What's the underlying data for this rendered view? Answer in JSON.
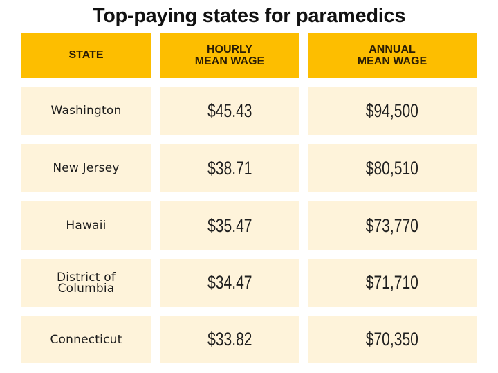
{
  "title": "Top-paying states for paramedics",
  "colors": {
    "header_bg": "#FDBE00",
    "cell_bg": "#FEF3DA",
    "text": "#1c1c1c"
  },
  "table": {
    "headers": [
      "STATE",
      "HOURLY\nMEAN WAGE",
      "ANNUAL\nMEAN WAGE"
    ],
    "rows": [
      {
        "state": "Washington",
        "hourly": "$45.43",
        "annual": "$94,500"
      },
      {
        "state": "New Jersey",
        "hourly": "$38.71",
        "annual": "$80,510"
      },
      {
        "state": "Hawaii",
        "hourly": "$35.47",
        "annual": "$73,770"
      },
      {
        "state": "District of\nColumbia",
        "hourly": "$34.47",
        "annual": "$71,710"
      },
      {
        "state": "Connecticut",
        "hourly": "$33.82",
        "annual": "$70,350"
      }
    ]
  },
  "chart_data": {
    "type": "table",
    "title": "Top-paying states for paramedics",
    "columns": [
      "State",
      "Hourly Mean Wage",
      "Annual Mean Wage"
    ],
    "rows": [
      [
        "Washington",
        45.43,
        94500
      ],
      [
        "New Jersey",
        38.71,
        80510
      ],
      [
        "Hawaii",
        35.47,
        73770
      ],
      [
        "District of Columbia",
        34.47,
        71710
      ],
      [
        "Connecticut",
        33.82,
        70350
      ]
    ]
  }
}
